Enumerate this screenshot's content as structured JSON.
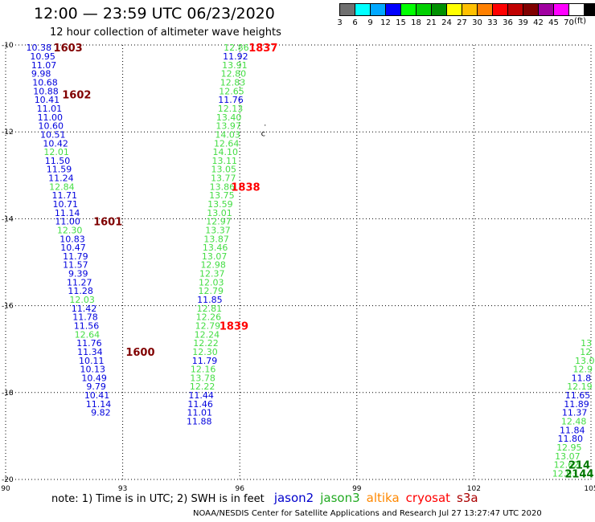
{
  "header": {
    "title": "12:00 — 23:59 UTC 06/23/2020",
    "subtitle": "12 hour collection of altimeter wave heights"
  },
  "colorbar": {
    "unit": "(ft)",
    "cells": [
      {
        "label": "3",
        "color": "#707070"
      },
      {
        "label": "6",
        "color": "#00ffff"
      },
      {
        "label": "9",
        "color": "#00a8ff"
      },
      {
        "label": "12",
        "color": "#0000ff"
      },
      {
        "label": "15",
        "color": "#00ff00"
      },
      {
        "label": "18",
        "color": "#00d000"
      },
      {
        "label": "21",
        "color": "#009000"
      },
      {
        "label": "24",
        "color": "#ffff00"
      },
      {
        "label": "27",
        "color": "#ffc000"
      },
      {
        "label": "30",
        "color": "#ff8000"
      },
      {
        "label": "33",
        "color": "#ff0000"
      },
      {
        "label": "36",
        "color": "#c00000"
      },
      {
        "label": "39",
        "color": "#800000"
      },
      {
        "label": "42",
        "color": "#a000a0"
      },
      {
        "label": "45",
        "color": "#ff00ff"
      },
      {
        "label": "70",
        "color": "#ffffff"
      },
      {
        "label": "",
        "color": "#000000"
      }
    ]
  },
  "legend": {
    "note": "note:  1) Time is in UTC;  2) SWH is in feet",
    "satellites": [
      {
        "name": "jason2",
        "color": "#0000cc"
      },
      {
        "name": "jason3",
        "color": "#22aa22"
      },
      {
        "name": "altika",
        "color": "#ff8800"
      },
      {
        "name": "cryosat",
        "color": "#ff0000"
      },
      {
        "name": "s3a",
        "color": "#aa0000"
      }
    ]
  },
  "footer": "NOAA/NESDIS Center for Satellite Applications and Research    Jul 27 13:27:47 UTC 2020",
  "chart_data": {
    "type": "scatter",
    "title": "12:00 — 23:59 UTC 06/23/2020",
    "xlabel": "",
    "ylabel": "",
    "xlim": [
      90,
      105
    ],
    "ylim": [
      -20,
      -10
    ],
    "x_ticks": [
      90,
      93,
      96,
      99,
      102,
      105
    ],
    "y_ticks": [
      -10,
      -12,
      -14,
      -16,
      -18,
      -20
    ],
    "grid": true,
    "series": [
      {
        "name": "jason2",
        "tracks": [
          {
            "points": [
              {
                "x": 90.85,
                "y": -10.06,
                "label": "10.38",
                "c": "b"
              },
              {
                "x": 90.95,
                "y": -10.26,
                "label": "10.95",
                "c": "b"
              },
              {
                "x": 90.98,
                "y": -10.46,
                "label": "11.07",
                "c": "b"
              },
              {
                "x": 90.91,
                "y": -10.66,
                "label": "9.98",
                "c": "b"
              },
              {
                "x": 91.01,
                "y": -10.86,
                "label": "10.68",
                "c": "b"
              },
              {
                "x": 91.03,
                "y": -11.06,
                "label": "10.88",
                "c": "b"
              },
              {
                "x": 91.06,
                "y": -11.26,
                "label": "10.41",
                "c": "b"
              },
              {
                "x": 91.12,
                "y": -11.46,
                "label": "11.01",
                "c": "b"
              },
              {
                "x": 91.14,
                "y": -11.66,
                "label": "11.00",
                "c": "b"
              },
              {
                "x": 91.16,
                "y": -11.86,
                "label": "10.60",
                "c": "b"
              },
              {
                "x": 91.21,
                "y": -12.06,
                "label": "10.51",
                "c": "b"
              },
              {
                "x": 91.28,
                "y": -12.26,
                "label": "10.42",
                "c": "b"
              },
              {
                "x": 91.3,
                "y": -12.46,
                "label": "12.01",
                "c": "g"
              },
              {
                "x": 91.33,
                "y": -12.66,
                "label": "11.50",
                "c": "b"
              },
              {
                "x": 91.37,
                "y": -12.86,
                "label": "11.59",
                "c": "b"
              },
              {
                "x": 91.42,
                "y": -13.06,
                "label": "11.24",
                "c": "b"
              },
              {
                "x": 91.44,
                "y": -13.26,
                "label": "12.84",
                "c": "g"
              },
              {
                "x": 91.51,
                "y": -13.46,
                "label": "11.71",
                "c": "b"
              },
              {
                "x": 91.53,
                "y": -13.66,
                "label": "10.71",
                "c": "b"
              },
              {
                "x": 91.58,
                "y": -13.86,
                "label": "11.14",
                "c": "b"
              },
              {
                "x": 91.59,
                "y": -14.06,
                "label": "11.00",
                "c": "b"
              },
              {
                "x": 91.64,
                "y": -14.26,
                "label": "12.30",
                "c": "g"
              },
              {
                "x": 91.71,
                "y": -14.46,
                "label": "10.83",
                "c": "b"
              },
              {
                "x": 91.73,
                "y": -14.66,
                "label": "10.47",
                "c": "b"
              },
              {
                "x": 91.79,
                "y": -14.86,
                "label": "11.79",
                "c": "b"
              },
              {
                "x": 91.79,
                "y": -15.06,
                "label": "11.57",
                "c": "b"
              },
              {
                "x": 91.86,
                "y": -15.26,
                "label": "9.39",
                "c": "b"
              },
              {
                "x": 91.89,
                "y": -15.46,
                "label": "11.27",
                "c": "b"
              },
              {
                "x": 91.92,
                "y": -15.66,
                "label": "11.28",
                "c": "b"
              },
              {
                "x": 91.96,
                "y": -15.86,
                "label": "12.03",
                "c": "g"
              },
              {
                "x": 92.01,
                "y": -16.06,
                "label": "11.42",
                "c": "b"
              },
              {
                "x": 92.04,
                "y": -16.26,
                "label": "11.78",
                "c": "b"
              },
              {
                "x": 92.07,
                "y": -16.46,
                "label": "11.56",
                "c": "b"
              },
              {
                "x": 92.09,
                "y": -16.66,
                "label": "12.64",
                "c": "g"
              },
              {
                "x": 92.14,
                "y": -16.86,
                "label": "11.76",
                "c": "b"
              },
              {
                "x": 92.16,
                "y": -17.06,
                "label": "11.34",
                "c": "b"
              },
              {
                "x": 92.2,
                "y": -17.26,
                "label": "10.11",
                "c": "b"
              },
              {
                "x": 92.23,
                "y": -17.46,
                "label": "10.13",
                "c": "b"
              },
              {
                "x": 92.27,
                "y": -17.66,
                "label": "10.49",
                "c": "b"
              },
              {
                "x": 92.32,
                "y": -17.86,
                "label": "9.79",
                "c": "b"
              },
              {
                "x": 92.34,
                "y": -18.06,
                "label": "10.41",
                "c": "b"
              },
              {
                "x": 92.38,
                "y": -18.26,
                "label": "11.14",
                "c": "b"
              },
              {
                "x": 92.44,
                "y": -18.46,
                "label": "9.82",
                "c": "b"
              }
            ]
          },
          {
            "points": [
              {
                "x": 95.91,
                "y": -10.06,
                "label": "12.86",
                "c": "g"
              },
              {
                "x": 95.89,
                "y": -10.26,
                "label": "11.92",
                "c": "b"
              },
              {
                "x": 95.87,
                "y": -10.46,
                "label": "13.91",
                "c": "g"
              },
              {
                "x": 95.84,
                "y": -10.66,
                "label": "12.80",
                "c": "g"
              },
              {
                "x": 95.82,
                "y": -10.86,
                "label": "12.83",
                "c": "g"
              },
              {
                "x": 95.79,
                "y": -11.06,
                "label": "12.65",
                "c": "g"
              },
              {
                "x": 95.77,
                "y": -11.26,
                "label": "11.76",
                "c": "b"
              },
              {
                "x": 95.76,
                "y": -11.46,
                "label": "12.13",
                "c": "g"
              },
              {
                "x": 95.72,
                "y": -11.66,
                "label": "13.40",
                "c": "g"
              },
              {
                "x": 95.71,
                "y": -11.86,
                "label": "13.97",
                "c": "g"
              },
              {
                "x": 95.69,
                "y": -12.06,
                "label": "14.03",
                "c": "g"
              },
              {
                "x": 95.66,
                "y": -12.26,
                "label": "12.64",
                "c": "g"
              },
              {
                "x": 95.63,
                "y": -12.46,
                "label": "14.10",
                "c": "g"
              },
              {
                "x": 95.61,
                "y": -12.66,
                "label": "13.11",
                "c": "g"
              },
              {
                "x": 95.59,
                "y": -12.86,
                "label": "13.05",
                "c": "g"
              },
              {
                "x": 95.58,
                "y": -13.06,
                "label": "13.77",
                "c": "g"
              },
              {
                "x": 95.55,
                "y": -13.26,
                "label": "13.86",
                "c": "g"
              },
              {
                "x": 95.54,
                "y": -13.46,
                "label": "13.75",
                "c": "g"
              },
              {
                "x": 95.5,
                "y": -13.66,
                "label": "13.59",
                "c": "g"
              },
              {
                "x": 95.48,
                "y": -13.86,
                "label": "13.01",
                "c": "g"
              },
              {
                "x": 95.46,
                "y": -14.06,
                "label": "12.97",
                "c": "g"
              },
              {
                "x": 95.44,
                "y": -14.26,
                "label": "13.37",
                "c": "g"
              },
              {
                "x": 95.4,
                "y": -14.46,
                "label": "13.87",
                "c": "g"
              },
              {
                "x": 95.37,
                "y": -14.66,
                "label": "13.46",
                "c": "g"
              },
              {
                "x": 95.35,
                "y": -14.86,
                "label": "13.07",
                "c": "g"
              },
              {
                "x": 95.32,
                "y": -15.06,
                "label": "12.98",
                "c": "g"
              },
              {
                "x": 95.29,
                "y": -15.26,
                "label": "12.37",
                "c": "g"
              },
              {
                "x": 95.27,
                "y": -15.46,
                "label": "12.03",
                "c": "g"
              },
              {
                "x": 95.26,
                "y": -15.66,
                "label": "12.79",
                "c": "g"
              },
              {
                "x": 95.23,
                "y": -15.86,
                "label": "11.85",
                "c": "b"
              },
              {
                "x": 95.22,
                "y": -16.06,
                "label": "12.81",
                "c": "g"
              },
              {
                "x": 95.2,
                "y": -16.26,
                "label": "12.26",
                "c": "g"
              },
              {
                "x": 95.18,
                "y": -16.46,
                "label": "12.79",
                "c": "g"
              },
              {
                "x": 95.16,
                "y": -16.66,
                "label": "12.24",
                "c": "g"
              },
              {
                "x": 95.13,
                "y": -16.86,
                "label": "12.22",
                "c": "g"
              },
              {
                "x": 95.11,
                "y": -17.06,
                "label": "12.30",
                "c": "g"
              },
              {
                "x": 95.1,
                "y": -17.26,
                "label": "11.79",
                "c": "b"
              },
              {
                "x": 95.06,
                "y": -17.46,
                "label": "12.16",
                "c": "g"
              },
              {
                "x": 95.05,
                "y": -17.66,
                "label": "13.78",
                "c": "g"
              },
              {
                "x": 95.04,
                "y": -17.86,
                "label": "12.22",
                "c": "g"
              },
              {
                "x": 95.01,
                "y": -18.06,
                "label": "11.44",
                "c": "b"
              },
              {
                "x": 94.99,
                "y": -18.26,
                "label": "11.46",
                "c": "b"
              },
              {
                "x": 94.97,
                "y": -18.46,
                "label": "11.01",
                "c": "b"
              },
              {
                "x": 94.96,
                "y": -18.66,
                "label": "11.88",
                "c": "b"
              }
            ]
          },
          {
            "points": [
              {
                "x": 104.88,
                "y": -16.86,
                "label": "13",
                "c": "g"
              },
              {
                "x": 104.86,
                "y": -17.06,
                "label": "12",
                "c": "g"
              },
              {
                "x": 104.84,
                "y": -17.26,
                "label": "13.0",
                "c": "g"
              },
              {
                "x": 104.79,
                "y": -17.46,
                "label": "12.9",
                "c": "g"
              },
              {
                "x": 104.75,
                "y": -17.66,
                "label": "11.8",
                "c": "b"
              },
              {
                "x": 104.71,
                "y": -17.86,
                "label": "12.19",
                "c": "g"
              },
              {
                "x": 104.66,
                "y": -18.06,
                "label": "11.65",
                "c": "b"
              },
              {
                "x": 104.63,
                "y": -18.26,
                "label": "11.89",
                "c": "b"
              },
              {
                "x": 104.58,
                "y": -18.46,
                "label": "11.37",
                "c": "b"
              },
              {
                "x": 104.56,
                "y": -18.66,
                "label": "12.48",
                "c": "g"
              },
              {
                "x": 104.52,
                "y": -18.86,
                "label": "11.84",
                "c": "b"
              },
              {
                "x": 104.47,
                "y": -19.06,
                "label": "11.80",
                "c": "b"
              },
              {
                "x": 104.44,
                "y": -19.26,
                "label": "12.95",
                "c": "g"
              },
              {
                "x": 104.4,
                "y": -19.46,
                "label": "13.07",
                "c": "g"
              },
              {
                "x": 104.37,
                "y": -19.66,
                "label": "12.62",
                "c": "g"
              },
              {
                "x": 104.33,
                "y": -19.86,
                "label": "12.93",
                "c": "g"
              }
            ]
          }
        ]
      }
    ],
    "time_labels": [
      {
        "x": 91.6,
        "y": -10.06,
        "label": "1603",
        "color": "#800000"
      },
      {
        "x": 91.82,
        "y": -11.14,
        "label": "1602",
        "color": "#800000"
      },
      {
        "x": 92.62,
        "y": -14.06,
        "label": "1601",
        "color": "#800000"
      },
      {
        "x": 93.45,
        "y": -17.06,
        "label": "1600",
        "color": "#800000"
      },
      {
        "x": 96.6,
        "y": -10.06,
        "label": "1837",
        "color": "#ff0000"
      },
      {
        "x": 96.15,
        "y": -13.26,
        "label": "1838",
        "color": "#ff0000"
      },
      {
        "x": 95.85,
        "y": -16.46,
        "label": "1839",
        "color": "#ff0000"
      },
      {
        "x": 104.7,
        "y": -19.66,
        "label": "214",
        "color": "#007700"
      },
      {
        "x": 104.7,
        "y": -19.86,
        "label": "2144",
        "color": "#007700"
      }
    ],
    "markers": [
      {
        "x": 96.65,
        "y": -11.86,
        "label": "."
      },
      {
        "x": 96.6,
        "y": -12.1,
        "label": "c"
      }
    ]
  }
}
